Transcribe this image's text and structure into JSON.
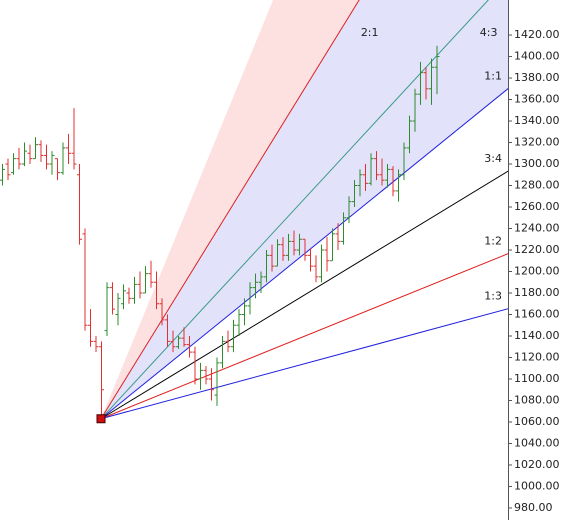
{
  "chart_data": {
    "type": "ohlc",
    "ylim": [
      968.8,
      1452.6
    ],
    "yticks": [
      {
        "value": 1420,
        "label": "1420.00"
      },
      {
        "value": 1400,
        "label": "1400.00"
      },
      {
        "value": 1380,
        "label": "1380.00"
      },
      {
        "value": 1360,
        "label": "1360.00"
      },
      {
        "value": 1340,
        "label": "1340.00"
      },
      {
        "value": 1320,
        "label": "1320.00"
      },
      {
        "value": 1300,
        "label": "1300.00"
      },
      {
        "value": 1280,
        "label": "1280.00"
      },
      {
        "value": 1260,
        "label": "1260.00"
      },
      {
        "value": 1240,
        "label": "1240.00"
      },
      {
        "value": 1220,
        "label": "1220.00"
      },
      {
        "value": 1200,
        "label": "1200.00"
      },
      {
        "value": 1180,
        "label": "1180.00"
      },
      {
        "value": 1160,
        "label": "1160.00"
      },
      {
        "value": 1140,
        "label": "1140.00"
      },
      {
        "value": 1120,
        "label": "1120.00"
      },
      {
        "value": 1100,
        "label": "1100.00"
      },
      {
        "value": 1080,
        "label": "1080.00"
      },
      {
        "value": 1060,
        "label": "1060.00"
      },
      {
        "value": 1040,
        "label": "1040.00"
      },
      {
        "value": 1020,
        "label": "1020.00"
      },
      {
        "value": 1000,
        "label": "1000.00"
      },
      {
        "value": 980,
        "label": "980.00"
      }
    ],
    "up_color": "#2e8b2e",
    "down_color": "#e03030",
    "high": [
      1300,
      1305,
      1310,
      1315,
      1320,
      1318,
      1325,
      1322,
      1318,
      1312,
      1305,
      1320,
      1328,
      1352,
      1300,
      1240,
      1165,
      1140,
      1135,
      1190,
      1190,
      1180,
      1188,
      1185,
      1195,
      1200,
      1205,
      1210,
      1200,
      1175,
      1160,
      1145,
      1140,
      1148,
      1140,
      1130,
      1115,
      1112,
      1110,
      1120,
      1140,
      1145,
      1155,
      1165,
      1175,
      1190,
      1198,
      1200,
      1220,
      1225,
      1230,
      1232,
      1235,
      1238,
      1235,
      1230,
      1222,
      1215,
      1225,
      1232,
      1240,
      1245,
      1255,
      1270,
      1285,
      1295,
      1300,
      1310,
      1312,
      1305,
      1300,
      1298,
      1295,
      1320,
      1345,
      1370,
      1395,
      1390,
      1398,
      1410
    ],
    "low": [
      1280,
      1285,
      1290,
      1295,
      1298,
      1300,
      1305,
      1302,
      1295,
      1290,
      1285,
      1290,
      1300,
      1295,
      1225,
      1145,
      1130,
      1125,
      1063,
      1140,
      1160,
      1150,
      1165,
      1170,
      1170,
      1175,
      1180,
      1185,
      1165,
      1150,
      1130,
      1125,
      1128,
      1130,
      1120,
      1095,
      1090,
      1095,
      1080,
      1075,
      1110,
      1125,
      1125,
      1140,
      1150,
      1160,
      1175,
      1180,
      1190,
      1200,
      1205,
      1210,
      1210,
      1215,
      1215,
      1210,
      1200,
      1190,
      1190,
      1200,
      1210,
      1220,
      1225,
      1245,
      1260,
      1270,
      1275,
      1280,
      1285,
      1280,
      1278,
      1270,
      1265,
      1285,
      1310,
      1330,
      1355,
      1360,
      1355,
      1365
    ],
    "open": [
      1285,
      1300,
      1292,
      1305,
      1300,
      1310,
      1305,
      1318,
      1308,
      1300,
      1305,
      1292,
      1315,
      1310,
      1290,
      1235,
      1150,
      1135,
      1130,
      1145,
      1185,
      1160,
      1170,
      1180,
      1175,
      1188,
      1180,
      1198,
      1190,
      1170,
      1155,
      1135,
      1130,
      1138,
      1132,
      1125,
      1100,
      1108,
      1100,
      1085,
      1115,
      1135,
      1130,
      1150,
      1160,
      1168,
      1185,
      1190,
      1195,
      1215,
      1205,
      1225,
      1215,
      1228,
      1220,
      1230,
      1215,
      1205,
      1195,
      1220,
      1210,
      1235,
      1228,
      1250,
      1265,
      1280,
      1290,
      1282,
      1305,
      1290,
      1285,
      1295,
      1275,
      1290,
      1315,
      1340,
      1365,
      1385,
      1370,
      1390
    ],
    "close": [
      1295,
      1290,
      1305,
      1300,
      1312,
      1305,
      1318,
      1308,
      1300,
      1308,
      1292,
      1315,
      1310,
      1300,
      1230,
      1150,
      1135,
      1130,
      1090,
      1185,
      1165,
      1175,
      1182,
      1175,
      1188,
      1180,
      1198,
      1190,
      1170,
      1155,
      1135,
      1130,
      1138,
      1132,
      1125,
      1100,
      1108,
      1100,
      1090,
      1115,
      1135,
      1130,
      1150,
      1160,
      1168,
      1185,
      1190,
      1195,
      1215,
      1205,
      1225,
      1215,
      1228,
      1220,
      1230,
      1215,
      1205,
      1195,
      1220,
      1210,
      1235,
      1228,
      1250,
      1265,
      1280,
      1290,
      1282,
      1305,
      1290,
      1285,
      1295,
      1275,
      1290,
      1315,
      1340,
      1365,
      1385,
      1370,
      1390,
      1400
    ],
    "fan": {
      "origin_index": 18,
      "origin_price": 1063,
      "unit_slope": 4.15,
      "marker_color": "#d01010",
      "fills": [
        {
          "from": 3,
          "to": 2,
          "color": "#fde0e0"
        },
        {
          "from": 2,
          "to": 1,
          "color": "#e2e2fa"
        }
      ],
      "lines": [
        {
          "label": "2:1",
          "ratio": 2,
          "color": "#e02020"
        },
        {
          "label": "4:3",
          "ratio": 1.3333,
          "color": "#3a9a8a"
        },
        {
          "label": "1:1",
          "ratio": 1,
          "color": "#2020e0"
        },
        {
          "label": "3:4",
          "ratio": 0.75,
          "color": "#000000"
        },
        {
          "label": "1:2",
          "ratio": 0.5,
          "color": "#e02020"
        },
        {
          "label": "1:3",
          "ratio": 0.3333,
          "color": "#2020e0"
        }
      ]
    }
  }
}
